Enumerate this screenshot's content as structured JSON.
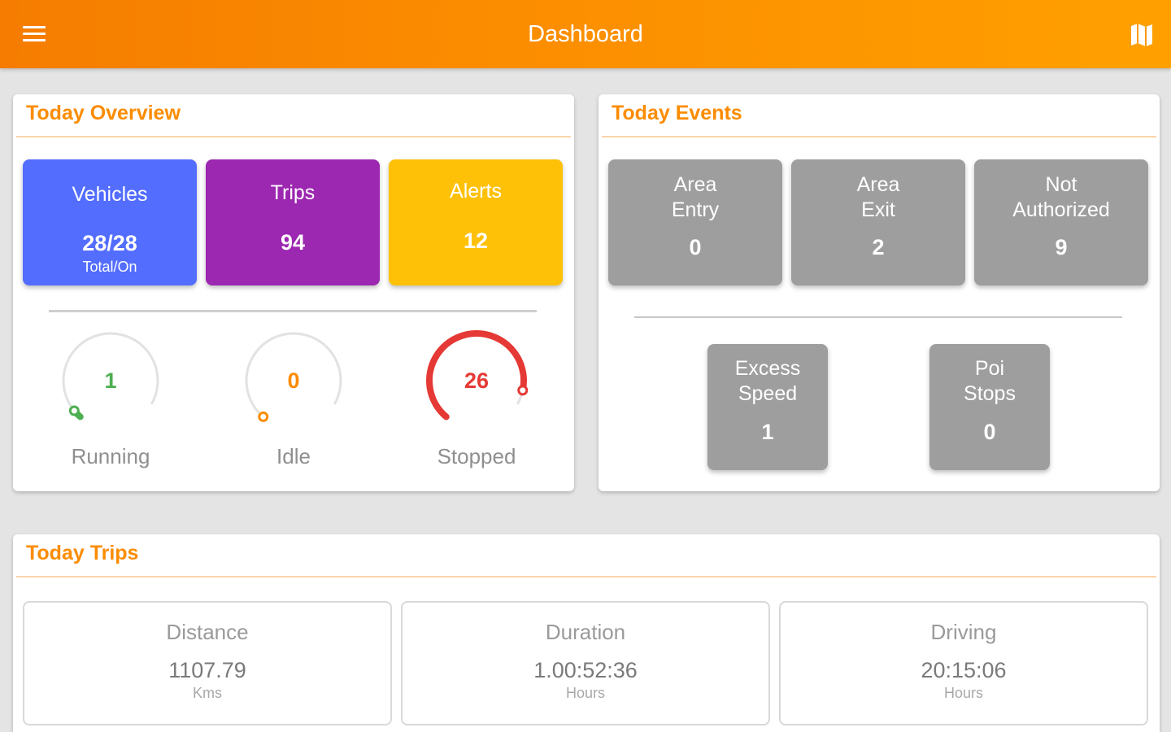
{
  "appbar": {
    "title": "Dashboard",
    "menu_icon": "hamburger-menu-icon",
    "map_icon": "map-icon",
    "gradient_from": "#f57c00",
    "gradient_to": "#ffa000"
  },
  "overview": {
    "title": "Today Overview",
    "tiles": [
      {
        "label": "Vehicles",
        "value": "28/28",
        "sub": "Total/On",
        "color": "#536dfe"
      },
      {
        "label": "Trips",
        "value": "94",
        "color": "#9c27b0"
      },
      {
        "label": "Alerts",
        "value": "12",
        "color": "#ffc107"
      }
    ],
    "gauges": [
      {
        "value": "1",
        "label": "Running",
        "fraction": 0.04,
        "color": "#4caf50"
      },
      {
        "value": "0",
        "label": "Idle",
        "fraction": 0,
        "color": "#fb8c00"
      },
      {
        "value": "26",
        "label": "Stopped",
        "fraction": 0.93,
        "color": "#e53935"
      }
    ]
  },
  "events": {
    "title": "Today Events",
    "items": [
      {
        "label_line1": "Area",
        "label_line2": "Entry",
        "value": "0"
      },
      {
        "label_line1": "Area",
        "label_line2": "Exit",
        "value": "2"
      },
      {
        "label_line1": "Not",
        "label_line2": "Authorized",
        "value": "9"
      },
      {
        "label_line1": "Excess",
        "label_line2": "Speed",
        "value": "1"
      },
      {
        "label_line1": "Poi",
        "label_line2": "Stops",
        "value": "0"
      }
    ],
    "tile_color": "#9e9e9e"
  },
  "trips": {
    "title": "Today Trips",
    "stats": [
      {
        "label": "Distance",
        "value": "1107.79",
        "unit": "Kms"
      },
      {
        "label": "Duration",
        "value": "1.00:52:36",
        "unit": "Hours"
      },
      {
        "label": "Driving",
        "value": "20:15:06",
        "unit": "Hours"
      }
    ]
  },
  "accent_color": "#fb8c00"
}
